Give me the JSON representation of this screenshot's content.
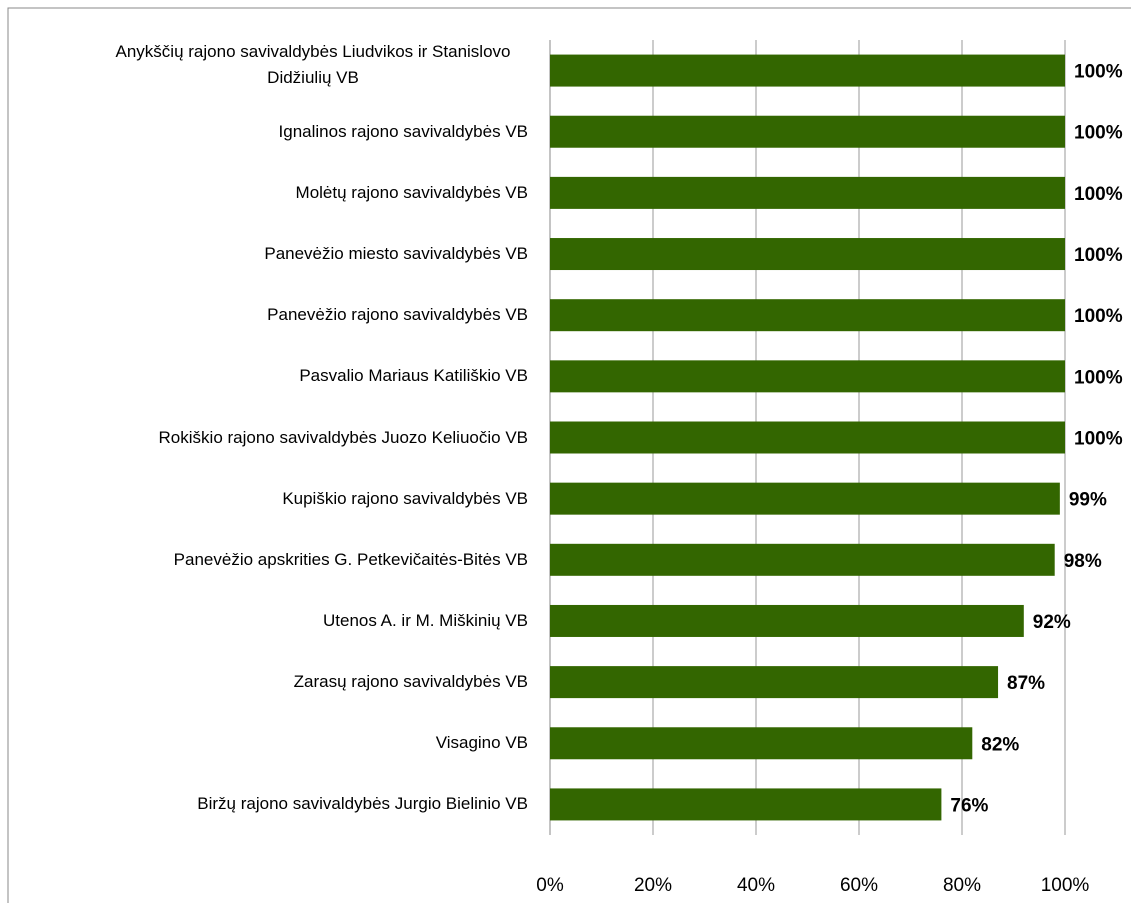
{
  "chart_data": {
    "type": "bar",
    "orientation": "horizontal",
    "categories": [
      "Anykščių rajono savivaldybės Liudvikos ir Stanislovo Didžiulių VB",
      "Ignalinos rajono savivaldybės VB",
      "Molėtų rajono savivaldybės VB",
      "Panevėžio miesto savivaldybės VB",
      "Panevėžio rajono savivaldybės VB",
      "Pasvalio Mariaus Katiliškio VB",
      "Rokiškio rajono savivaldybės Juozo Keliuočio VB",
      "Kupiškio rajono savivaldybės VB",
      "Panevėžio apskrities G. Petkevičaitės-Bitės VB",
      "Utenos A. ir M. Miškinių VB",
      "Zarasų rajono savivaldybės VB",
      "Visagino VB",
      "Biržų rajono savivaldybės Jurgio Bielinio VB"
    ],
    "values": [
      100,
      100,
      100,
      100,
      100,
      100,
      100,
      99,
      98,
      92,
      87,
      82,
      76
    ],
    "value_labels": [
      "100%",
      "100%",
      "100%",
      "100%",
      "100%",
      "100%",
      "100%",
      "99%",
      "98%",
      "92%",
      "87%",
      "82%",
      "76%"
    ],
    "color": "#336600",
    "xlim": [
      0,
      100
    ],
    "xticks": [
      {
        "value": 0,
        "label": "0%"
      },
      {
        "value": 20,
        "label": "20%"
      },
      {
        "value": 40,
        "label": "40%"
      },
      {
        "value": 60,
        "label": "60%"
      },
      {
        "value": 80,
        "label": "80%"
      },
      {
        "value": 100,
        "label": "100%"
      }
    ],
    "grid": true
  }
}
